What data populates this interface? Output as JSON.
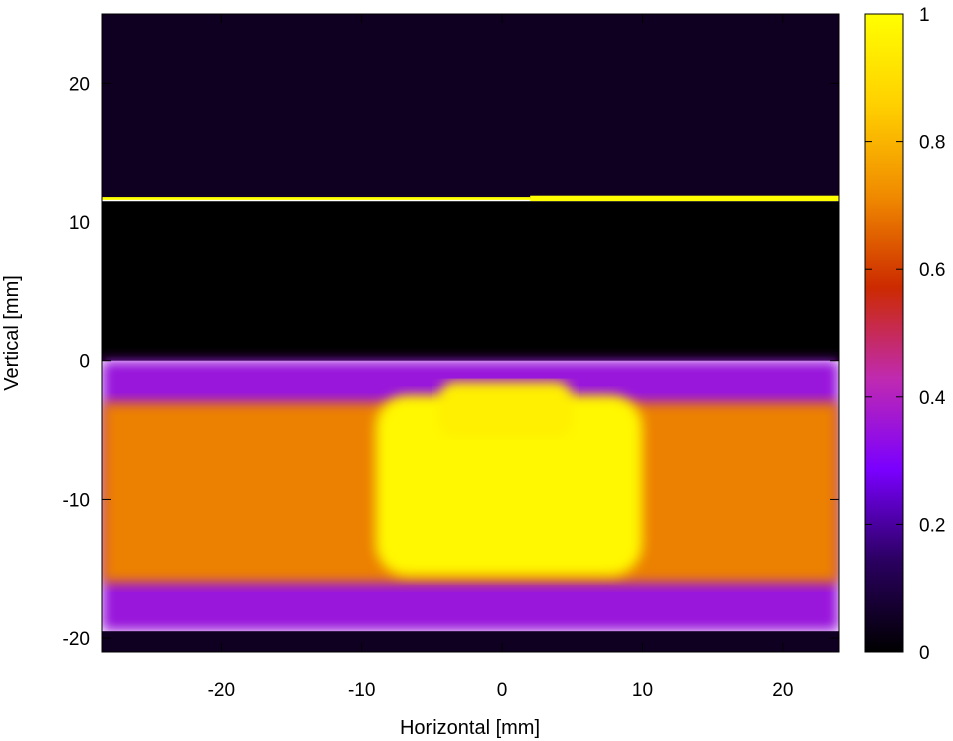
{
  "chart_data": {
    "type": "heatmap",
    "title": "",
    "xlabel": "Horizontal [mm]",
    "ylabel": "Vertical [mm]",
    "xlim": [
      -28.5,
      24.0
    ],
    "ylim": [
      -21.0,
      25.0
    ],
    "x_ticks": [
      -20,
      -10,
      0,
      10,
      20
    ],
    "x_tick_labels": [
      "-20",
      "-10",
      "0",
      "10",
      "20"
    ],
    "y_ticks": [
      -20,
      -10,
      0,
      10,
      20
    ],
    "y_tick_labels": [
      "-20",
      "-10",
      "0",
      "10",
      "20"
    ],
    "colorbar": {
      "range": [
        0,
        1
      ],
      "ticks": [
        0,
        0.2,
        0.4,
        0.6,
        0.8,
        1
      ],
      "tick_labels": [
        "0",
        "0.2",
        "0.4",
        "0.6",
        "0.8",
        "1"
      ],
      "colormap": [
        "#000000",
        "#2a0060",
        "#7a00ff",
        "#c02ab0",
        "#cc2a00",
        "#f08a00",
        "#ffd000",
        "#ffff00"
      ]
    },
    "regions": [
      {
        "name": "upper-background",
        "x": [
          -28.5,
          24.0
        ],
        "y": [
          11.7,
          25.0
        ],
        "value": 0.05
      },
      {
        "name": "bright-line-left",
        "x": [
          -28.5,
          2.0
        ],
        "y": [
          11.6,
          11.8
        ],
        "value": 1.0
      },
      {
        "name": "bright-line-right",
        "x": [
          2.0,
          24.0
        ],
        "y": [
          11.5,
          11.9
        ],
        "value": 1.0
      },
      {
        "name": "dark-gap",
        "x": [
          -28.5,
          24.0
        ],
        "y": [
          0.0,
          11.5
        ],
        "value": 0.0
      },
      {
        "name": "outer-band",
        "x": [
          -28.5,
          24.0
        ],
        "y": [
          -19.5,
          0.0
        ],
        "value": 0.35
      },
      {
        "name": "main-band",
        "x": [
          -28.5,
          24.0
        ],
        "y": [
          -16.0,
          -3.0
        ],
        "value": 0.7
      },
      {
        "name": "center-peak",
        "x": [
          -9.0,
          10.0
        ],
        "y": [
          -15.5,
          -2.5
        ],
        "value": 0.98
      },
      {
        "name": "top-lobe",
        "x": [
          -4.5,
          5.0
        ],
        "y": [
          -5.5,
          -1.5
        ],
        "value": 0.95
      },
      {
        "name": "bottom-edge",
        "x": [
          -28.5,
          24.0
        ],
        "y": [
          -21.0,
          -19.5
        ],
        "value": 0.05
      }
    ]
  }
}
